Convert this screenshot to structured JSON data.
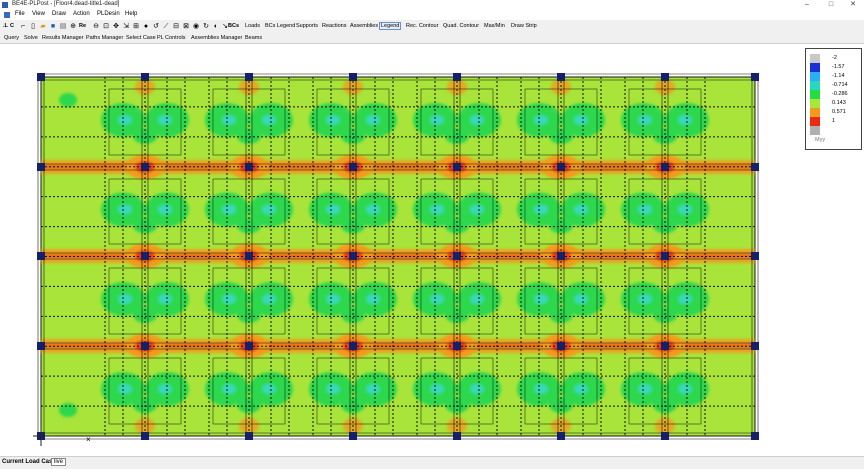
{
  "window": {
    "title": "BE4E-PLPost - [Floor4.dead-title1-dead]",
    "minimize_glyph": "–",
    "maximize_glyph": "□",
    "close_glyph": "✕"
  },
  "menu": [
    "File",
    "View",
    "Draw",
    "Action",
    "PLDesin",
    "Help"
  ],
  "toolbar": {
    "icons": [
      "cursor-icon",
      "new-icon",
      "open-icon",
      "save-icon",
      "print-icon",
      "zoom-in-icon",
      "zoom-out-icon",
      "zoom-window-icon",
      "pan-icon"
    ],
    "letter_labels": [
      ".L",
      "C"
    ],
    "re_label": "Re",
    "bcs_label": "BCs",
    "text_buttons": [
      "Loads",
      "BCs Legend",
      "Supports",
      "Reactions",
      "Assemblies",
      "Legend",
      "Rec. Contour",
      "Quad. Contour",
      "Max/Min",
      "Draw Strip"
    ],
    "active_button": "Legend"
  },
  "toolbar2": [
    "Query",
    "Solve",
    "Results Manager",
    "Paths Manager",
    "Select Case",
    "PL Controls",
    "Assemblies Manager",
    "Beams"
  ],
  "legend": {
    "variable": "Myy",
    "entries": [
      {
        "label": "-2",
        "color": "#c8c8c8"
      },
      {
        "label": "-1.57",
        "color": "#1c2fd6"
      },
      {
        "label": "-1.14",
        "color": "#2ab0f2"
      },
      {
        "label": "-0.714",
        "color": "#25d8c0"
      },
      {
        "label": "-0.286",
        "color": "#22dd44"
      },
      {
        "label": "0.143",
        "color": "#a6e838"
      },
      {
        "label": "0.571",
        "color": "#f29a1e"
      },
      {
        "label": "1",
        "color": "#ee2a0e"
      },
      {
        "label": "",
        "color": "#b0b0b0"
      }
    ]
  },
  "status": {
    "label": "Current Load Case:",
    "value": "live"
  },
  "colors": {
    "base": "#a8e43a",
    "green": "#2fd84e",
    "cyan": "#38d9b8",
    "orange": "#f39a1e",
    "red": "#ec3a12",
    "navy": "#15206a"
  }
}
